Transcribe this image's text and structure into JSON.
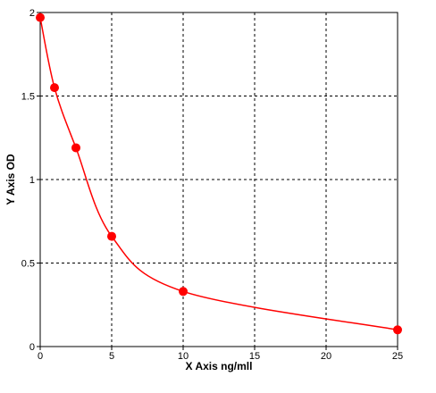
{
  "chart_data": {
    "type": "scatter",
    "x_label": "X Axis ng/mll",
    "y_label": "Y Axis OD",
    "x": [
      0,
      1,
      2.5,
      5,
      10,
      25
    ],
    "series": [
      {
        "color": "#ff0000",
        "values": [
          1.97,
          1.55,
          1.19,
          0.66,
          0.33,
          0.1
        ]
      }
    ],
    "xlim": [
      0,
      25
    ],
    "xticks": [
      0,
      5,
      10,
      15,
      20,
      25
    ],
    "ylim": [
      0,
      2
    ],
    "yticks": [
      0,
      0.5,
      1,
      1.5,
      2
    ],
    "grid": true
  }
}
